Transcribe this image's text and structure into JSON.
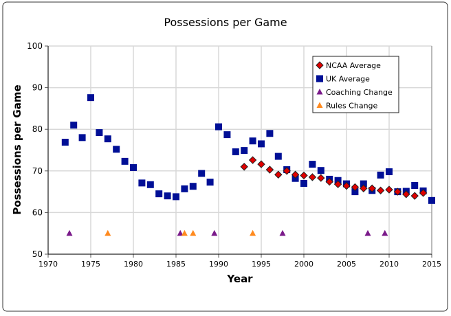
{
  "chart_data": {
    "type": "scatter",
    "title": "Possessions per Game",
    "xlabel": "Year",
    "ylabel": "Possessions per Game",
    "xlim": [
      1970,
      2015
    ],
    "ylim": [
      50,
      100
    ],
    "xticks": [
      1970,
      1975,
      1980,
      1985,
      1990,
      1995,
      2000,
      2005,
      2010,
      2015
    ],
    "yticks": [
      50,
      60,
      70,
      80,
      90,
      100
    ],
    "grid": true,
    "legend_position": "top-right",
    "series": [
      {
        "name": "NCAA Average",
        "marker": "diamond",
        "color": "#e00000",
        "x": [
          1993,
          1994,
          1995,
          1996,
          1997,
          1998,
          1999,
          2000,
          2001,
          2002,
          2003,
          2004,
          2005,
          2006,
          2007,
          2008,
          2009,
          2010,
          2011,
          2012,
          2013,
          2014
        ],
        "y": [
          71,
          72.6,
          71.6,
          70.3,
          69.1,
          70,
          69.1,
          68.9,
          68.5,
          68.3,
          67.4,
          66.8,
          66.4,
          66.1,
          65.8,
          65.8,
          65.3,
          65.5,
          65,
          64.4,
          64,
          64.7
        ]
      },
      {
        "name": "UK Average",
        "marker": "square",
        "color": "#000f96",
        "x": [
          1972,
          1973,
          1974,
          1975,
          1976,
          1977,
          1978,
          1979,
          1980,
          1981,
          1982,
          1983,
          1984,
          1985,
          1986,
          1987,
          1988,
          1989,
          1990,
          1991,
          1992,
          1993,
          1994,
          1995,
          1996,
          1997,
          1998,
          1999,
          2000,
          2001,
          2002,
          2003,
          2004,
          2005,
          2006,
          2007,
          2008,
          2009,
          2010,
          2011,
          2012,
          2013,
          2014,
          2015
        ],
        "y": [
          76.9,
          81,
          78,
          87.6,
          79.2,
          77.7,
          75.2,
          72.3,
          70.8,
          67.1,
          66.7,
          64.5,
          64,
          63.8,
          65.7,
          66.3,
          69.4,
          67.3,
          80.6,
          78.7,
          74.6,
          74.9,
          77.2,
          76.5,
          79,
          73.5,
          70.3,
          68.2,
          67,
          71.6,
          70.1,
          68,
          67.7,
          66.9,
          65,
          66.9,
          65.3,
          69,
          69.8,
          65,
          65.1,
          66.5,
          65.2,
          62.9
        ]
      },
      {
        "name": "Coaching Change",
        "marker": "triangle",
        "color": "#7a1a8a",
        "x": [
          1972.5,
          1985.5,
          1989.5,
          1997.5,
          2007.5,
          2009.5
        ],
        "y": [
          55,
          55,
          55,
          55,
          55,
          55
        ]
      },
      {
        "name": "Rules Change",
        "marker": "triangle",
        "color": "#ff8a1e",
        "x": [
          1977,
          1986,
          1987,
          1994
        ],
        "y": [
          55,
          55,
          55,
          55
        ]
      }
    ]
  }
}
